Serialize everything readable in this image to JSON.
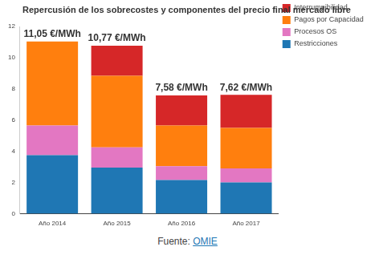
{
  "chart_data": {
    "type": "bar",
    "stacked": true,
    "title": "Repercusión de los sobrecostes y componentes del precio final mercado libre",
    "categories": [
      "Año 2014",
      "Año 2015",
      "Año 2016",
      "Año 2017"
    ],
    "series": [
      {
        "name": "Restricciones",
        "color": "#1f77b4",
        "values": [
          3.75,
          2.95,
          2.15,
          2.0
        ]
      },
      {
        "name": "Procesos OS",
        "color": "#e377c2",
        "values": [
          1.9,
          1.3,
          0.9,
          0.9
        ]
      },
      {
        "name": "Pagos por Capacidad",
        "color": "#ff7f0e",
        "values": [
          5.4,
          4.6,
          2.6,
          2.6
        ]
      },
      {
        "name": "Interrumpibilidad",
        "color": "#d62728",
        "values": [
          null,
          1.92,
          1.93,
          2.12
        ]
      }
    ],
    "totals": [
      11.05,
      10.77,
      7.58,
      7.62
    ],
    "total_labels": [
      "11,05 €/MWh",
      "10,77 €/MWh",
      "7,58 €/MWh",
      "7,62 €/MWh"
    ],
    "ylim": [
      0,
      12
    ],
    "yticks": [
      0,
      2,
      4,
      6,
      8,
      10,
      12
    ],
    "grid": false,
    "legend": "top-right",
    "source": {
      "label": "Fuente:",
      "name": "OMIE"
    }
  }
}
